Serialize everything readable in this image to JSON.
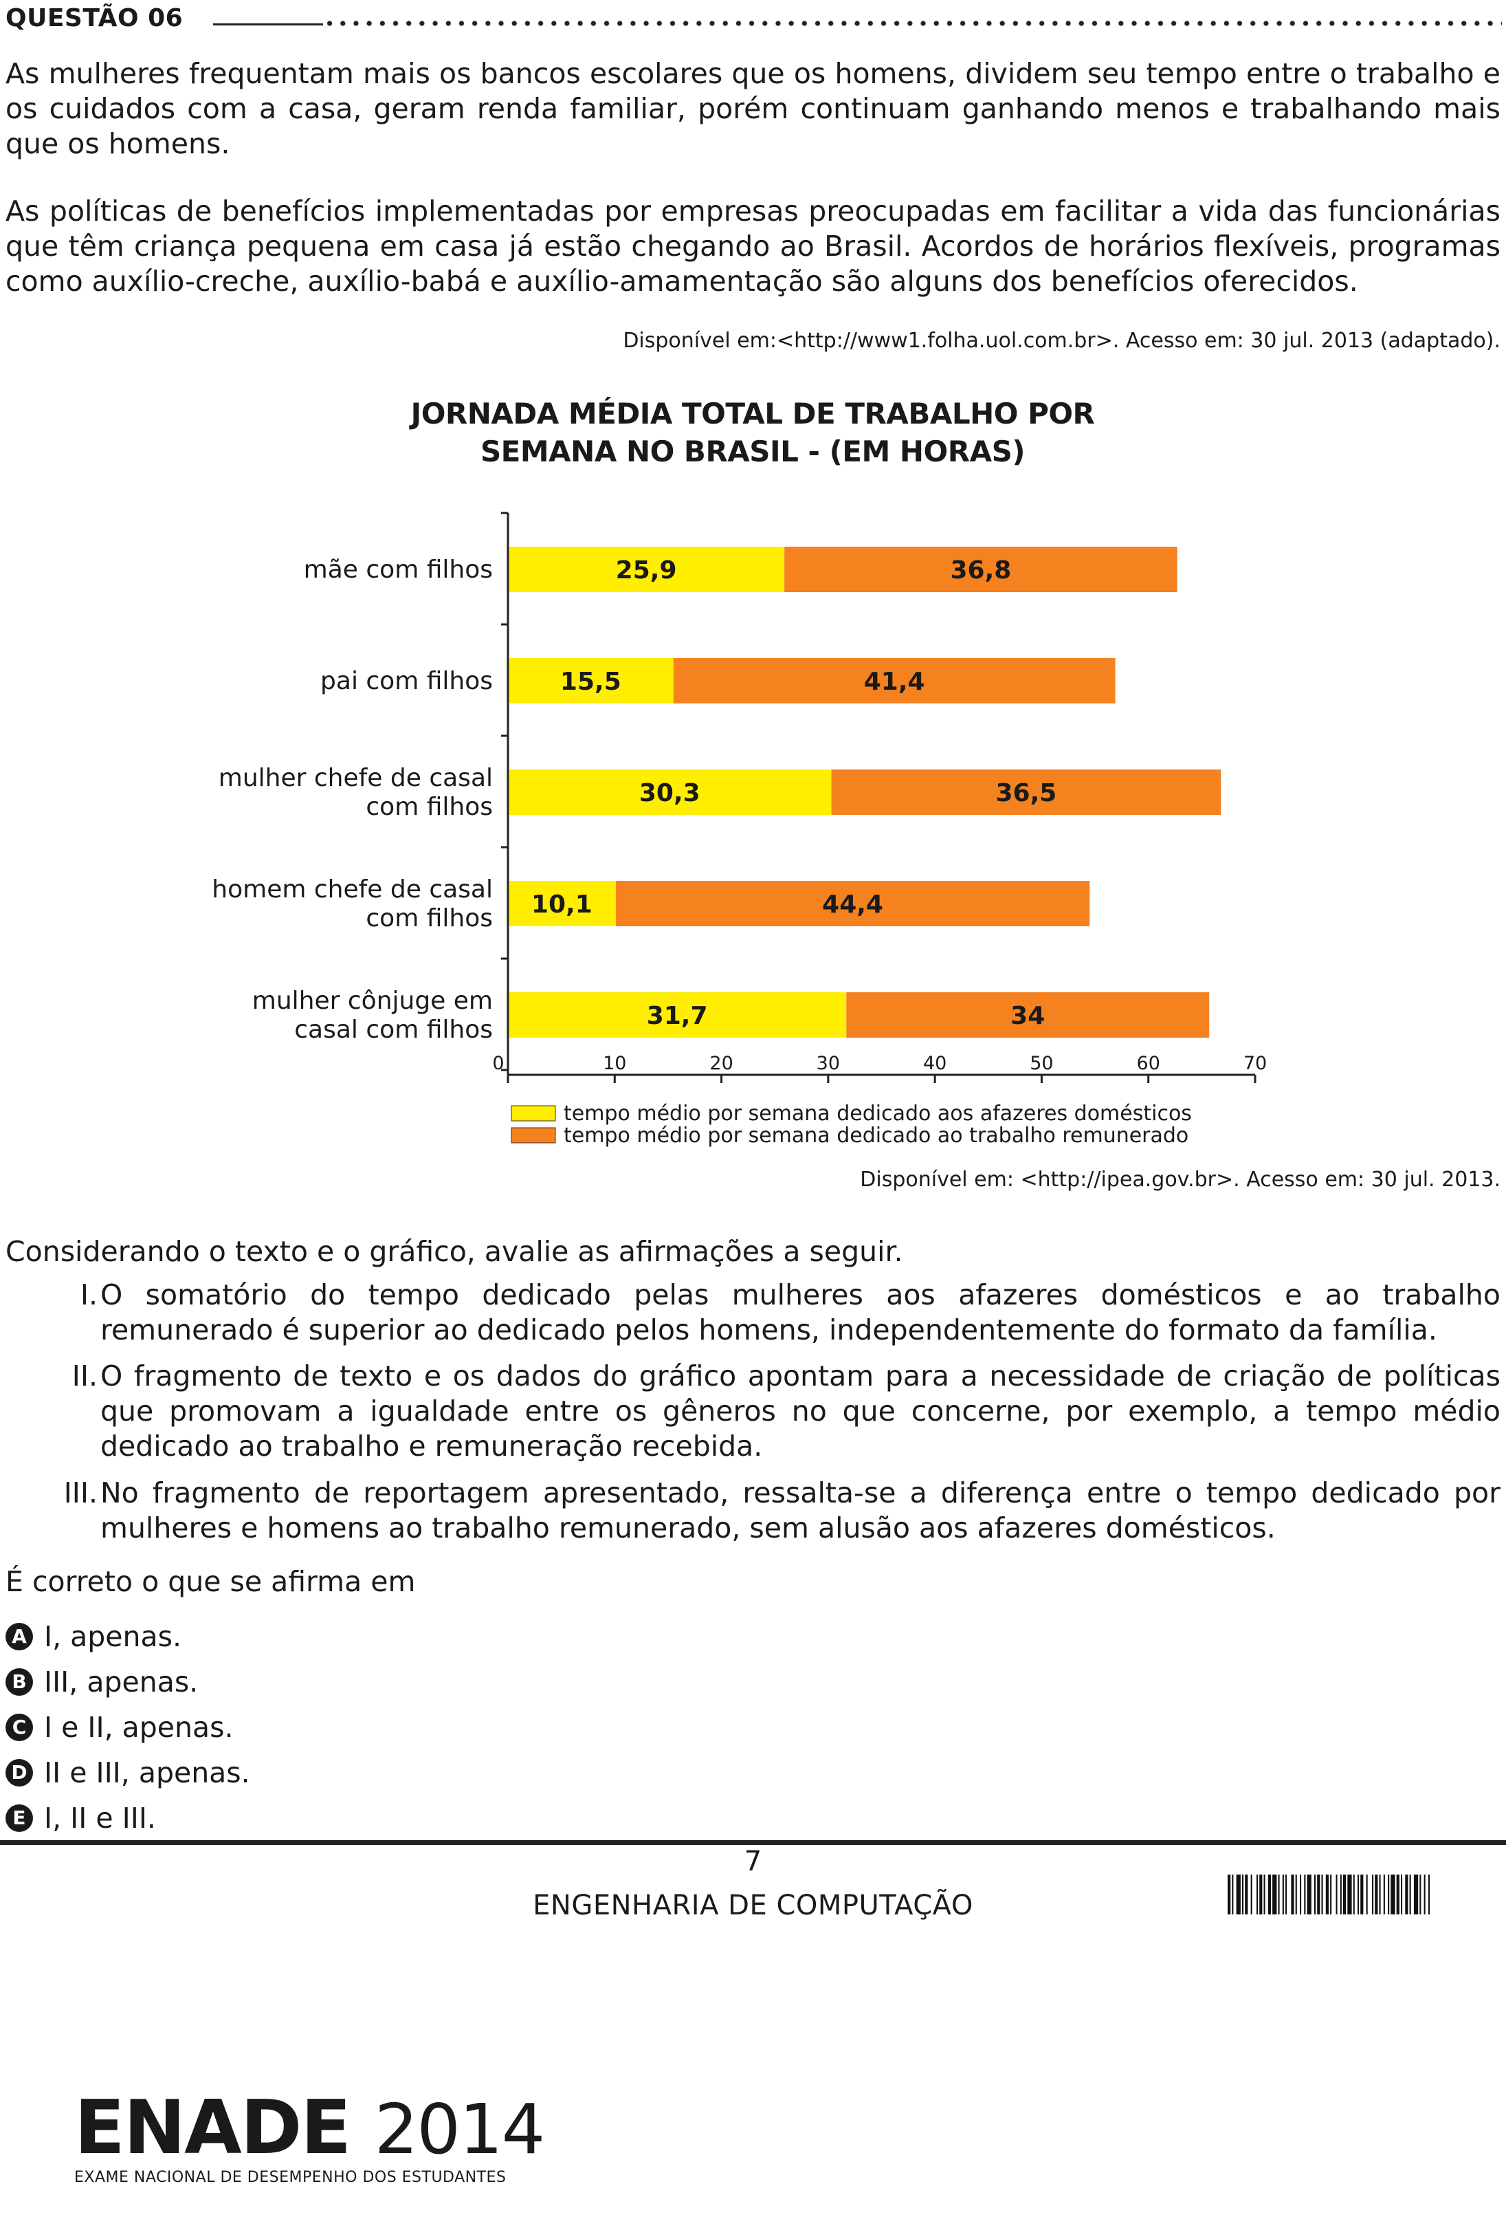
{
  "header": {
    "question_title": "QUESTÃO 06"
  },
  "text": {
    "paragraph1": "As mulheres frequentam mais os bancos escolares que os homens, dividem seu tempo entre o trabalho e os cuidados com a casa, geram renda familiar, porém continuam ganhando menos e trabalhando mais que os homens.",
    "paragraph2": "As políticas de benefícios implementadas por empresas preocupadas em facilitar a vida das funcionárias que têm criança pequena em casa já estão chegando ao Brasil. Acordos de horários flexíveis, programas como auxílio-creche, auxílio-babá e auxílio-amamentação são alguns dos benefícios oferecidos.",
    "source1": "Disponível em:<http://www1.folha.uol.com.br>. Acesso em: 30 jul. 2013 (adaptado)."
  },
  "chart_data": {
    "type": "bar",
    "orientation": "horizontal",
    "stacked": true,
    "title_line1": "JORNADA MÉDIA TOTAL DE TRABALHO POR",
    "title_line2": "SEMANA NO BRASIL - (EM HORAS)",
    "categories": [
      [
        "mãe com filhos"
      ],
      [
        "pai com filhos"
      ],
      [
        "mulher chefe de casal",
        "com filhos"
      ],
      [
        "homem chefe de casal",
        "com filhos"
      ],
      [
        "mulher cônjuge em",
        "casal com filhos"
      ]
    ],
    "series": [
      {
        "name": "tempo médio por semana dedicado aos afazeres domésticos",
        "color": "#ffee00",
        "values": [
          25.9,
          15.5,
          30.3,
          10.1,
          31.7
        ],
        "labels": [
          "25,9",
          "15,5",
          "30,3",
          "10,1",
          "31,7"
        ]
      },
      {
        "name": "tempo médio por semana dedicado ao trabalho remunerado",
        "color": "#f5821f",
        "values": [
          36.8,
          41.4,
          36.5,
          44.4,
          34
        ],
        "labels": [
          "36,8",
          "41,4",
          "36,5",
          "44,4",
          "34"
        ]
      }
    ],
    "xlim": [
      0,
      70
    ],
    "xticks": [
      0,
      10,
      20,
      30,
      40,
      50,
      60,
      70
    ],
    "xlabel": "",
    "ylabel": "",
    "legend_position": "bottom",
    "source": "Disponível em: <http://ipea.gov.br>. Acesso em: 30 jul. 2013."
  },
  "question": {
    "intro": "Considerando o texto e o gráfico, avalie as afirmações a seguir.",
    "statements": [
      {
        "numeral": "I.",
        "text": "O somatório do tempo dedicado pelas mulheres aos afazeres domésticos e ao trabalho remunerado é superior ao dedicado pelos homens, independentemente do formato da família."
      },
      {
        "numeral": "II.",
        "text": "O fragmento de texto e os dados do gráfico apontam para a necessidade de criação de políticas que promovam a igualdade entre os gêneros no que concerne, por exemplo, a tempo médio dedicado ao trabalho e remuneração recebida."
      },
      {
        "numeral": "III.",
        "text": "No fragmento de reportagem apresentado, ressalta-se a diferença entre o tempo dedicado por mulheres e homens ao trabalho remunerado, sem alusão aos afazeres domésticos."
      }
    ],
    "prompt": "É correto o que se afirma em",
    "options": [
      {
        "letter": "A",
        "text": "I, apenas."
      },
      {
        "letter": "B",
        "text": "III, apenas."
      },
      {
        "letter": "C",
        "text": "I e II, apenas."
      },
      {
        "letter": "D",
        "text": "II e III, apenas."
      },
      {
        "letter": "E",
        "text": "I, II e III."
      }
    ]
  },
  "footer": {
    "page_number": "7",
    "course": "ENGENHARIA DE COMPUTAÇÃO",
    "logo_text": "ENADE",
    "logo_year": "2014",
    "logo_subtitle": "EXAME NACIONAL DE DESEMPENHO DOS ESTUDANTES"
  }
}
